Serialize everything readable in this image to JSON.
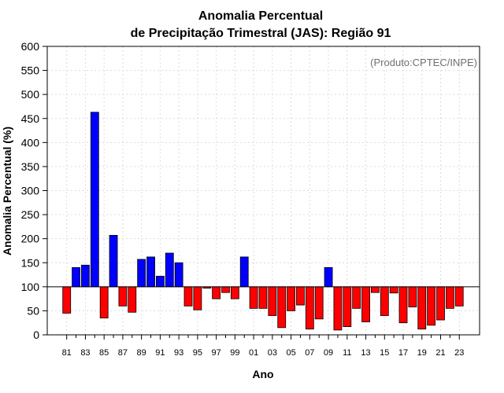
{
  "chart_data": {
    "type": "bar",
    "title_line1": "Anomalia Percentual",
    "title_line2": "de Precipitação Trimestral (JAS): Região 91",
    "xlabel": "Ano",
    "ylabel": "Anomalia Percentual (%)",
    "credit": "(Produto:CPTEC/INPE)",
    "baseline": 100,
    "ylim": [
      0,
      600
    ],
    "yticks": [
      0,
      50,
      100,
      150,
      200,
      250,
      300,
      350,
      400,
      450,
      500,
      550,
      600
    ],
    "grid": true,
    "colors": {
      "above": "#0000ff",
      "below": "#ff0000",
      "edge": "#000000",
      "baseline": "#000000"
    },
    "categories": [
      "81",
      "82",
      "83",
      "84",
      "85",
      "86",
      "87",
      "88",
      "89",
      "90",
      "91",
      "92",
      "93",
      "94",
      "95",
      "96",
      "97",
      "98",
      "99",
      "00",
      "01",
      "02",
      "03",
      "04",
      "05",
      "06",
      "07",
      "08",
      "09",
      "10",
      "11",
      "12",
      "13",
      "14",
      "15",
      "16",
      "17",
      "18",
      "19",
      "20",
      "21",
      "22",
      "23"
    ],
    "xtick_labels": [
      "81",
      "83",
      "85",
      "87",
      "89",
      "91",
      "93",
      "95",
      "97",
      "99",
      "01",
      "03",
      "05",
      "07",
      "09",
      "11",
      "13",
      "15",
      "17",
      "19",
      "21",
      "23"
    ],
    "values": [
      45,
      140,
      145,
      463,
      35,
      207,
      60,
      47,
      157,
      162,
      122,
      170,
      150,
      60,
      52,
      97,
      75,
      88,
      75,
      162,
      55,
      55,
      40,
      15,
      50,
      62,
      12,
      33,
      140,
      10,
      17,
      55,
      27,
      88,
      40,
      87,
      25,
      58,
      12,
      20,
      31,
      55,
      60
    ]
  }
}
